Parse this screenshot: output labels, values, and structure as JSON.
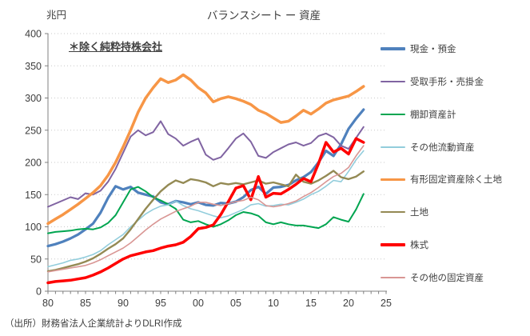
{
  "header": {
    "title": "バランスシート ー 資産",
    "unit_label": "兆円",
    "annotation": "＊除く純粋持株会社"
  },
  "footer": {
    "source": "（出所）財務省法人企業統計よりDLRI作成"
  },
  "chart_data": {
    "type": "line",
    "title": "バランスシート ー 資産",
    "ylabel": "兆円",
    "ylim": [
      0,
      400
    ],
    "ytick_interval": 50,
    "xlim": [
      1980,
      2025
    ],
    "xtick_years": [
      1980,
      1985,
      1990,
      1995,
      2000,
      2005,
      2010,
      2015,
      2020,
      2025
    ],
    "xtick_labels": [
      "80",
      "85",
      "90",
      "95",
      "00",
      "05",
      "10",
      "15",
      "20",
      "25"
    ],
    "grid": "horizontal-dotted",
    "legend_position": "right",
    "axis_color": "#808080",
    "grid_color": "#c9c9c9",
    "x": [
      1980,
      1981,
      1982,
      1983,
      1984,
      1985,
      1986,
      1987,
      1988,
      1989,
      1990,
      1991,
      1992,
      1993,
      1994,
      1995,
      1996,
      1997,
      1998,
      1999,
      2000,
      2001,
      2002,
      2003,
      2004,
      2005,
      2006,
      2007,
      2008,
      2009,
      2010,
      2011,
      2012,
      2013,
      2014,
      2015,
      2016,
      2017,
      2018,
      2019,
      2020,
      2021,
      2022
    ],
    "series": [
      {
        "name": "現金・預金",
        "color": "#4F81BD",
        "width": 3.2,
        "values": [
          70,
          73,
          77,
          82,
          88,
          96,
          105,
          122,
          145,
          163,
          158,
          162,
          153,
          150,
          147,
          138,
          135,
          140,
          138,
          135,
          138,
          134,
          133,
          137,
          136,
          139,
          146,
          157,
          162,
          151,
          161,
          162,
          165,
          172,
          177,
          185,
          200,
          218,
          210,
          228,
          252,
          268,
          282
        ]
      },
      {
        "name": "受取手形・売掛金",
        "color": "#8064A2",
        "width": 2,
        "values": [
          131,
          136,
          141,
          146,
          143,
          152,
          150,
          156,
          170,
          190,
          215,
          240,
          250,
          242,
          247,
          264,
          244,
          237,
          226,
          232,
          237,
          212,
          204,
          208,
          222,
          237,
          245,
          232,
          210,
          207,
          216,
          222,
          228,
          231,
          226,
          230,
          241,
          245,
          239,
          226,
          221,
          238,
          255
        ]
      },
      {
        "name": "棚卸資産計",
        "color": "#00A550",
        "width": 2,
        "values": [
          90,
          92,
          93,
          94,
          96,
          97,
          96,
          99,
          106,
          118,
          138,
          158,
          162,
          155,
          146,
          141,
          135,
          128,
          111,
          107,
          109,
          104,
          100,
          104,
          110,
          118,
          123,
          121,
          117,
          107,
          104,
          107,
          104,
          102,
          102,
          100,
          98,
          104,
          115,
          111,
          108,
          127,
          151
        ]
      },
      {
        "name": "その他流動資産",
        "color": "#92CDDC",
        "width": 1.6,
        "values": [
          38,
          41,
          44,
          48,
          50,
          53,
          57,
          63,
          72,
          80,
          88,
          100,
          110,
          120,
          127,
          132,
          134,
          140,
          133,
          128,
          125,
          121,
          117,
          114,
          117,
          122,
          127,
          134,
          136,
          132,
          133,
          135,
          134,
          138,
          143,
          150,
          155,
          163,
          172,
          170,
          186,
          204,
          218
        ]
      },
      {
        "name": "有形固定資産除く土地",
        "color": "#F79646",
        "width": 3.5,
        "values": [
          105,
          112,
          119,
          127,
          135,
          144,
          153,
          164,
          180,
          200,
          224,
          250,
          278,
          300,
          316,
          330,
          324,
          328,
          336,
          328,
          316,
          308,
          294,
          299,
          302,
          299,
          295,
          290,
          281,
          276,
          269,
          262,
          264,
          272,
          281,
          275,
          283,
          292,
          297,
          300,
          303,
          310,
          318
        ]
      },
      {
        "name": "土地",
        "color": "#948A54",
        "width": 2.4,
        "values": [
          31,
          33,
          36,
          39,
          42,
          46,
          51,
          58,
          66,
          73,
          82,
          96,
          112,
          128,
          142,
          155,
          165,
          172,
          168,
          174,
          172,
          169,
          163,
          168,
          166,
          168,
          166,
          169,
          172,
          167,
          169,
          166,
          163,
          181,
          170,
          167,
          172,
          179,
          187,
          177,
          174,
          178,
          186
        ]
      },
      {
        "name": "株式",
        "color": "#FF0000",
        "width": 3.5,
        "values": [
          13,
          15,
          16,
          17,
          19,
          21,
          25,
          30,
          36,
          43,
          50,
          55,
          58,
          61,
          63,
          67,
          70,
          72,
          76,
          85,
          97,
          99,
          103,
          119,
          139,
          160,
          164,
          142,
          178,
          146,
          152,
          151,
          158,
          166,
          175,
          170,
          198,
          231,
          216,
          222,
          213,
          237,
          231
        ]
      },
      {
        "name": "その他の固定資産",
        "color": "#D99694",
        "width": 1.6,
        "values": [
          30,
          32,
          34,
          36,
          38,
          40,
          44,
          49,
          55,
          61,
          67,
          75,
          85,
          95,
          104,
          112,
          118,
          124,
          128,
          132,
          138,
          138,
          135,
          133,
          136,
          139,
          141,
          146,
          142,
          133,
          131,
          133,
          136,
          140,
          147,
          153,
          161,
          170,
          178,
          183,
          192,
          210,
          226
        ]
      }
    ]
  }
}
